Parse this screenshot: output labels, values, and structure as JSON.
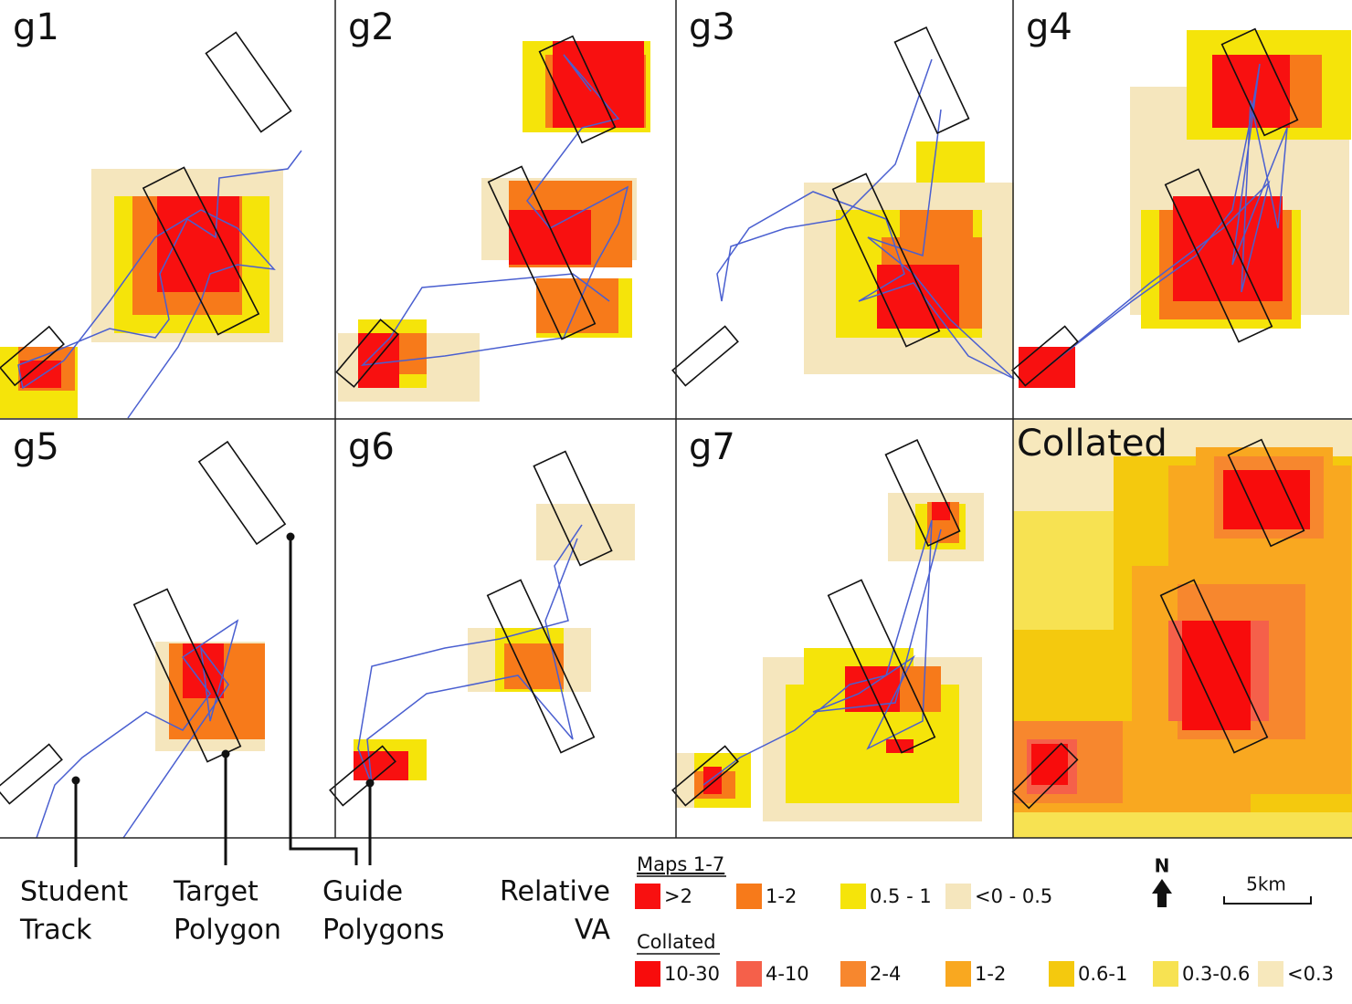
{
  "panels": [
    {
      "label": "g1"
    },
    {
      "label": "g2"
    },
    {
      "label": "g3"
    },
    {
      "label": "g4"
    },
    {
      "label": "g5"
    },
    {
      "label": "g6"
    },
    {
      "label": "g7"
    },
    {
      "label": "Collated"
    }
  ],
  "callouts": [
    {
      "lines": [
        "Student",
        "Track"
      ]
    },
    {
      "lines": [
        "Target",
        "Polygon"
      ]
    },
    {
      "lines": [
        "Guide",
        "Polygons"
      ]
    }
  ],
  "relative_va": {
    "lines": [
      "Relative",
      "VA"
    ]
  },
  "legend": {
    "maps": {
      "title": "Maps 1-7",
      "items": [
        {
          "label": ">2",
          "color": "#f81010"
        },
        {
          "label": "1-2",
          "color": "#f77a1a"
        },
        {
          "label": "0.5 - 1",
          "color": "#f5e40a"
        },
        {
          "label": "<0 - 0.5",
          "color": "#f5e6bd"
        }
      ]
    },
    "collated": {
      "title": "Collated",
      "items": [
        {
          "label": "10-30",
          "color": "#f80c0c"
        },
        {
          "label": "4-10",
          "color": "#f5604a"
        },
        {
          "label": "2-4",
          "color": "#f7872e"
        },
        {
          "label": "1-2",
          "color": "#f9a820"
        },
        {
          "label": "0.6-1",
          "color": "#f4c90e"
        },
        {
          "label": "0.3-0.6",
          "color": "#f7e252"
        },
        {
          "label": "<0.3",
          "color": "#f7e8bc"
        }
      ]
    }
  },
  "north": "N",
  "scale": "5km"
}
